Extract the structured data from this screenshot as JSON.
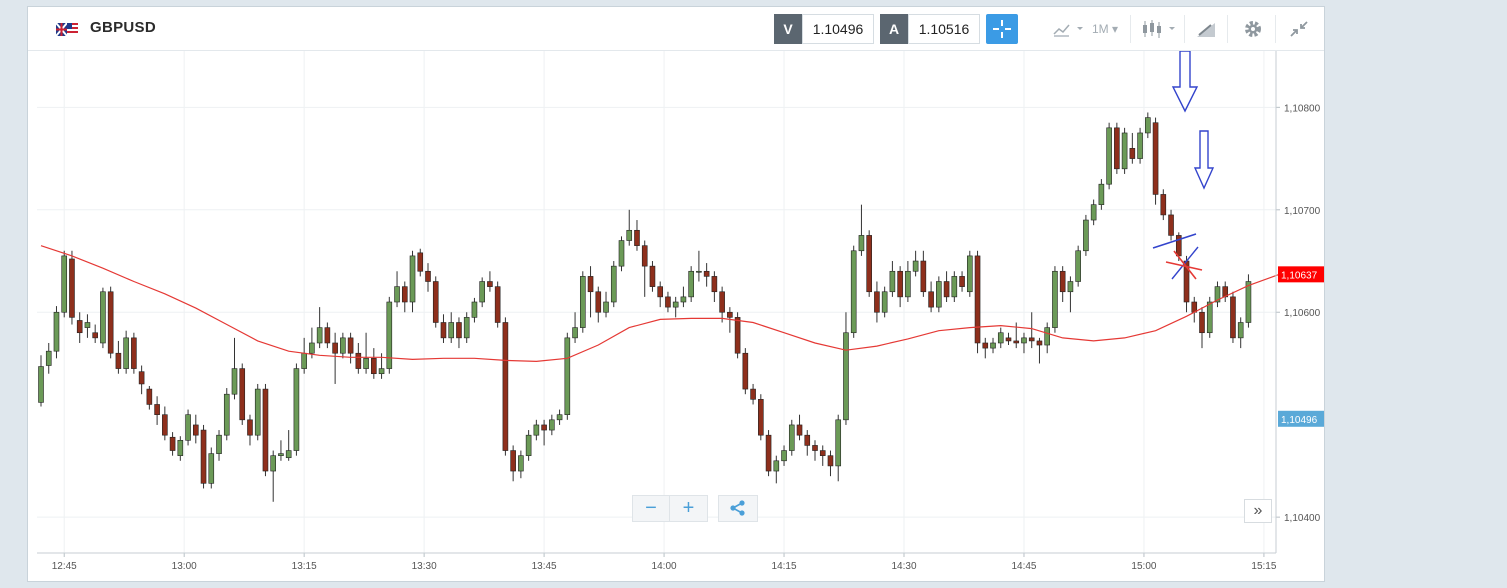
{
  "header": {
    "symbol": "GBPUSD",
    "bid_tag": "V",
    "bid": "1.10496",
    "ask_tag": "A",
    "ask": "1.10516",
    "timeframe": "1M"
  },
  "icons": [
    "flag-icon",
    "crosshair-icon",
    "chart-type-icon",
    "candles-icon",
    "draw-icon",
    "gear-icon",
    "collapse-icon",
    "share-icon",
    "double-chevron-icon"
  ],
  "colors": {
    "up": "#6b9a57",
    "down": "#8e2f1c",
    "ma": "#e53935",
    "price_tag_red": "#ff0000",
    "price_tag_blue": "#5aa9d8",
    "annotation_blue": "#3344cc"
  },
  "controls": {
    "zoom_out": "−",
    "zoom_in": "+",
    "expand": "»"
  },
  "chart_data": {
    "type": "candlestick",
    "x_tick_labels": [
      "12:45",
      "13:00",
      "13:15",
      "13:30",
      "13:45",
      "14:00",
      "14:15",
      "14:30",
      "14:45",
      "15:00",
      "15:15"
    ],
    "y_tick_labels": [
      "1,10800",
      "1,10700",
      "1,10600",
      "1,10400"
    ],
    "ylim": [
      1.10365,
      1.10855
    ],
    "current_price_label": "1,10637",
    "bid_price_label": "1,10496",
    "grid": true,
    "candles": [
      [
        1.10512,
        1.10547,
        1.10558,
        1.10508
      ],
      [
        1.10548,
        1.10562,
        1.1057,
        1.1054
      ],
      [
        1.10562,
        1.106,
        1.10606,
        1.10555
      ],
      [
        1.106,
        1.10655,
        1.1066,
        1.10595
      ],
      [
        1.10652,
        1.10595,
        1.1066,
        1.10588
      ],
      [
        1.10592,
        1.1058,
        1.106,
        1.1057
      ],
      [
        1.10585,
        1.1059,
        1.10598,
        1.10575
      ],
      [
        1.1058,
        1.10575,
        1.10588,
        1.1057
      ],
      [
        1.1057,
        1.1062,
        1.10624,
        1.10565
      ],
      [
        1.1062,
        1.1056,
        1.10625,
        1.10555
      ],
      [
        1.1056,
        1.10545,
        1.10572,
        1.1054
      ],
      [
        1.10545,
        1.10575,
        1.10582,
        1.1054
      ],
      [
        1.10575,
        1.10545,
        1.1058,
        1.1054
      ],
      [
        1.10542,
        1.1053,
        1.10548,
        1.1052
      ],
      [
        1.10525,
        1.1051,
        1.10528,
        1.10505
      ],
      [
        1.1051,
        1.105,
        1.10518,
        1.1049
      ],
      [
        1.105,
        1.1048,
        1.10508,
        1.10475
      ],
      [
        1.10478,
        1.10465,
        1.10483,
        1.1046
      ],
      [
        1.1046,
        1.10475,
        1.10479,
        1.10455
      ],
      [
        1.10475,
        1.105,
        1.10505,
        1.1047
      ],
      [
        1.1049,
        1.1048,
        1.105,
        1.10472
      ],
      [
        1.10485,
        1.10433,
        1.1049,
        1.10428
      ],
      [
        1.10433,
        1.10462,
        1.10468,
        1.10428
      ],
      [
        1.10462,
        1.1048,
        1.10485,
        1.10455
      ],
      [
        1.1048,
        1.1052,
        1.10526,
        1.10475
      ],
      [
        1.1052,
        1.10545,
        1.10575,
        1.10515
      ],
      [
        1.10545,
        1.10495,
        1.1055,
        1.1049
      ],
      [
        1.10495,
        1.1048,
        1.105,
        1.1047
      ],
      [
        1.1048,
        1.10525,
        1.1053,
        1.10475
      ],
      [
        1.10525,
        1.10445,
        1.1053,
        1.1044
      ],
      [
        1.10445,
        1.1046,
        1.10465,
        1.10415
      ],
      [
        1.1046,
        1.10462,
        1.10475,
        1.10455
      ],
      [
        1.10458,
        1.10465,
        1.10485,
        1.10455
      ],
      [
        1.10465,
        1.10545,
        1.1055,
        1.1046
      ],
      [
        1.10545,
        1.1056,
        1.10575,
        1.1054
      ],
      [
        1.1056,
        1.1057,
        1.10585,
        1.10555
      ],
      [
        1.1057,
        1.10585,
        1.10605,
        1.10565
      ],
      [
        1.10585,
        1.1057,
        1.1059,
        1.10565
      ],
      [
        1.1057,
        1.1056,
        1.1058,
        1.1053
      ],
      [
        1.1056,
        1.10575,
        1.1058,
        1.10555
      ],
      [
        1.10575,
        1.1056,
        1.1058,
        1.1055
      ],
      [
        1.1056,
        1.10545,
        1.1057,
        1.1054
      ],
      [
        1.10545,
        1.10555,
        1.1058,
        1.1054
      ],
      [
        1.10555,
        1.1054,
        1.10565,
        1.10535
      ],
      [
        1.1054,
        1.10545,
        1.1056,
        1.10535
      ],
      [
        1.10545,
        1.1061,
        1.10615,
        1.1054
      ],
      [
        1.1061,
        1.10625,
        1.1064,
        1.10605
      ],
      [
        1.10625,
        1.1061,
        1.1063,
        1.106
      ],
      [
        1.1061,
        1.10655,
        1.1066,
        1.106
      ],
      [
        1.10658,
        1.1064,
        1.10662,
        1.10635
      ],
      [
        1.1064,
        1.1063,
        1.10648,
        1.1062
      ],
      [
        1.1063,
        1.1059,
        1.10635,
        1.10585
      ],
      [
        1.1059,
        1.10575,
        1.10598,
        1.1057
      ],
      [
        1.10575,
        1.1059,
        1.106,
        1.1057
      ],
      [
        1.1059,
        1.10575,
        1.10595,
        1.10565
      ],
      [
        1.10575,
        1.10595,
        1.106,
        1.1057
      ],
      [
        1.10595,
        1.1061,
        1.10614,
        1.1059
      ],
      [
        1.1061,
        1.1063,
        1.10634,
        1.10605
      ],
      [
        1.1063,
        1.10625,
        1.1064,
        1.1062
      ],
      [
        1.10625,
        1.1059,
        1.1063,
        1.10585
      ],
      [
        1.1059,
        1.10465,
        1.10595,
        1.1046
      ],
      [
        1.10465,
        1.10445,
        1.1047,
        1.10435
      ],
      [
        1.10445,
        1.1046,
        1.10465,
        1.10438
      ],
      [
        1.1046,
        1.1048,
        1.10485,
        1.10455
      ],
      [
        1.1048,
        1.1049,
        1.10495,
        1.10475
      ],
      [
        1.1049,
        1.10485,
        1.10495,
        1.1047
      ],
      [
        1.10485,
        1.10495,
        1.105,
        1.1048
      ],
      [
        1.10495,
        1.105,
        1.10505,
        1.1049
      ],
      [
        1.105,
        1.10575,
        1.1058,
        1.10495
      ],
      [
        1.10575,
        1.10585,
        1.106,
        1.1057
      ],
      [
        1.10585,
        1.10635,
        1.1064,
        1.1058
      ],
      [
        1.10635,
        1.1062,
        1.10645,
        1.10595
      ],
      [
        1.1062,
        1.106,
        1.10625,
        1.1059
      ],
      [
        1.106,
        1.1061,
        1.1062,
        1.10595
      ],
      [
        1.1061,
        1.10645,
        1.1065,
        1.10605
      ],
      [
        1.10645,
        1.1067,
        1.10674,
        1.1064
      ],
      [
        1.1067,
        1.1068,
        1.107,
        1.10665
      ],
      [
        1.1068,
        1.10665,
        1.1069,
        1.1066
      ],
      [
        1.10665,
        1.10645,
        1.1067,
        1.10615
      ],
      [
        1.10645,
        1.10625,
        1.1065,
        1.1062
      ],
      [
        1.10625,
        1.10615,
        1.1063,
        1.10605
      ],
      [
        1.10615,
        1.10605,
        1.1062,
        1.106
      ],
      [
        1.10605,
        1.1061,
        1.10615,
        1.10595
      ],
      [
        1.1061,
        1.10615,
        1.10625,
        1.10605
      ],
      [
        1.10615,
        1.1064,
        1.10645,
        1.1061
      ],
      [
        1.1064,
        1.1064,
        1.1066,
        1.1063
      ],
      [
        1.1064,
        1.10635,
        1.10648,
        1.10625
      ],
      [
        1.10635,
        1.1062,
        1.1064,
        1.1061
      ],
      [
        1.1062,
        1.106,
        1.10625,
        1.1059
      ],
      [
        1.106,
        1.10595,
        1.10605,
        1.1058
      ],
      [
        1.10595,
        1.1056,
        1.106,
        1.10555
      ],
      [
        1.1056,
        1.10525,
        1.10565,
        1.1052
      ],
      [
        1.10525,
        1.10515,
        1.1053,
        1.1051
      ],
      [
        1.10515,
        1.1048,
        1.1052,
        1.10475
      ],
      [
        1.1048,
        1.10445,
        1.10485,
        1.1044
      ],
      [
        1.10445,
        1.10455,
        1.1046,
        1.10433
      ],
      [
        1.10455,
        1.10465,
        1.1047,
        1.1045
      ],
      [
        1.10465,
        1.1049,
        1.10495,
        1.1046
      ],
      [
        1.1049,
        1.1048,
        1.105,
        1.10475
      ],
      [
        1.1048,
        1.1047,
        1.10485,
        1.1046
      ],
      [
        1.1047,
        1.10465,
        1.10475,
        1.10455
      ],
      [
        1.10465,
        1.1046,
        1.1047,
        1.1045
      ],
      [
        1.1046,
        1.1045,
        1.10465,
        1.1044
      ],
      [
        1.1045,
        1.10495,
        1.105,
        1.10435
      ],
      [
        1.10495,
        1.1058,
        1.106,
        1.1049
      ],
      [
        1.1058,
        1.1066,
        1.10665,
        1.10575
      ],
      [
        1.1066,
        1.10675,
        1.10705,
        1.10655
      ],
      [
        1.10675,
        1.1062,
        1.1068,
        1.10615
      ],
      [
        1.1062,
        1.106,
        1.1063,
        1.1059
      ],
      [
        1.106,
        1.1062,
        1.10625,
        1.10595
      ],
      [
        1.1062,
        1.1064,
        1.1065,
        1.10615
      ],
      [
        1.1064,
        1.10615,
        1.10645,
        1.10605
      ],
      [
        1.10615,
        1.1064,
        1.1065,
        1.1061
      ],
      [
        1.1064,
        1.1065,
        1.1066,
        1.10635
      ],
      [
        1.1065,
        1.1062,
        1.1066,
        1.10615
      ],
      [
        1.1062,
        1.10605,
        1.1063,
        1.106
      ],
      [
        1.10605,
        1.1063,
        1.10635,
        1.106
      ],
      [
        1.1063,
        1.10615,
        1.1064,
        1.1061
      ],
      [
        1.10615,
        1.10635,
        1.1064,
        1.1061
      ],
      [
        1.10635,
        1.10625,
        1.1064,
        1.1062
      ],
      [
        1.1062,
        1.10655,
        1.1066,
        1.10615
      ],
      [
        1.10655,
        1.1057,
        1.1066,
        1.1056
      ],
      [
        1.1057,
        1.10565,
        1.10575,
        1.10555
      ],
      [
        1.10565,
        1.1057,
        1.10575,
        1.1056
      ],
      [
        1.1057,
        1.1058,
        1.10585,
        1.10565
      ],
      [
        1.10575,
        1.10572,
        1.1058,
        1.10568
      ],
      [
        1.10572,
        1.1057,
        1.1059,
        1.10565
      ],
      [
        1.1057,
        1.10575,
        1.1058,
        1.1056
      ],
      [
        1.10575,
        1.10572,
        1.106,
        1.10565
      ],
      [
        1.10572,
        1.10568,
        1.10575,
        1.1055
      ],
      [
        1.10568,
        1.10585,
        1.1059,
        1.1056
      ],
      [
        1.10585,
        1.1064,
        1.10645,
        1.1058
      ],
      [
        1.1064,
        1.1062,
        1.10645,
        1.1061
      ],
      [
        1.1062,
        1.1063,
        1.10635,
        1.106
      ],
      [
        1.1063,
        1.1066,
        1.10665,
        1.10625
      ],
      [
        1.1066,
        1.1069,
        1.10695,
        1.10655
      ],
      [
        1.1069,
        1.10705,
        1.1071,
        1.10685
      ],
      [
        1.10705,
        1.10725,
        1.1073,
        1.107
      ],
      [
        1.10725,
        1.1078,
        1.10785,
        1.1072
      ],
      [
        1.1078,
        1.1074,
        1.10785,
        1.10735
      ],
      [
        1.1074,
        1.10775,
        1.1078,
        1.10735
      ],
      [
        1.1076,
        1.1075,
        1.10775,
        1.10745
      ],
      [
        1.1075,
        1.10775,
        1.1078,
        1.10745
      ],
      [
        1.10775,
        1.1079,
        1.10795,
        1.1077
      ],
      [
        1.10785,
        1.10715,
        1.1079,
        1.10705
      ],
      [
        1.10715,
        1.10695,
        1.1072,
        1.1069
      ],
      [
        1.10695,
        1.10675,
        1.107,
        1.1067
      ],
      [
        1.10675,
        1.10655,
        1.10678,
        1.1065
      ],
      [
        1.1065,
        1.1061,
        1.10655,
        1.106
      ],
      [
        1.1061,
        1.106,
        1.10615,
        1.1059
      ],
      [
        1.106,
        1.1058,
        1.10605,
        1.10565
      ],
      [
        1.1058,
        1.1061,
        1.10615,
        1.10575
      ],
      [
        1.1061,
        1.10625,
        1.1063,
        1.10605
      ],
      [
        1.10625,
        1.10615,
        1.1063,
        1.1061
      ],
      [
        1.10615,
        1.10575,
        1.1062,
        1.1057
      ],
      [
        1.10575,
        1.1059,
        1.10595,
        1.10565
      ],
      [
        1.1059,
        1.1063,
        1.10637,
        1.10585
      ]
    ],
    "moving_average": [
      [
        0,
        1.10665
      ],
      [
        4,
        1.10655
      ],
      [
        8,
        1.10643
      ],
      [
        12,
        1.1063
      ],
      [
        16,
        1.10618
      ],
      [
        20,
        1.10604
      ],
      [
        24,
        1.10588
      ],
      [
        28,
        1.10572
      ],
      [
        32,
        1.10562
      ],
      [
        36,
        1.10558
      ],
      [
        40,
        1.10556
      ],
      [
        44,
        1.10556
      ],
      [
        48,
        1.10554
      ],
      [
        52,
        1.10555
      ],
      [
        56,
        1.10555
      ],
      [
        60,
        1.10553
      ],
      [
        64,
        1.10552
      ],
      [
        68,
        1.10555
      ],
      [
        72,
        1.10568
      ],
      [
        76,
        1.10585
      ],
      [
        80,
        1.10593
      ],
      [
        84,
        1.10594
      ],
      [
        88,
        1.10594
      ],
      [
        92,
        1.1059
      ],
      [
        96,
        1.1058
      ],
      [
        100,
        1.1057
      ],
      [
        104,
        1.10563
      ],
      [
        108,
        1.10567
      ],
      [
        112,
        1.10574
      ],
      [
        116,
        1.10582
      ],
      [
        120,
        1.10585
      ],
      [
        124,
        1.10587
      ],
      [
        128,
        1.10584
      ],
      [
        132,
        1.10575
      ],
      [
        136,
        1.10572
      ],
      [
        140,
        1.10575
      ],
      [
        144,
        1.10582
      ],
      [
        148,
        1.10596
      ],
      [
        152,
        1.10612
      ],
      [
        156,
        1.10626
      ],
      [
        160,
        1.10637
      ]
    ]
  }
}
